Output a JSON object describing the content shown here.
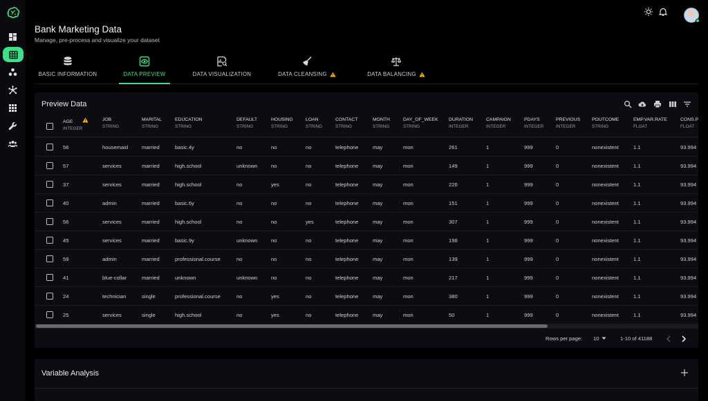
{
  "sidebar": {
    "logo_icon": "brain-logo-icon",
    "items": [
      {
        "icon": "dashboard-icon",
        "active": false
      },
      {
        "icon": "table-grid-icon",
        "active": true
      },
      {
        "icon": "cluster-icon",
        "active": false
      },
      {
        "icon": "network-icon",
        "active": false
      },
      {
        "icon": "apps-grid-icon",
        "active": false
      },
      {
        "icon": "wrench-icon",
        "active": false
      },
      {
        "icon": "users-icon",
        "active": false
      }
    ]
  },
  "topbar": {
    "icons": [
      "brightness-icon",
      "bell-icon",
      "user-avatar"
    ]
  },
  "header": {
    "title": "Bank Marketing Data",
    "subtitle": "Manage, pre-process and visualize your dataset"
  },
  "tabs": [
    {
      "label": "BASIC INFORMATION",
      "icon": "database-icon",
      "active": false,
      "warning": false
    },
    {
      "label": "DATA PREVIEW",
      "icon": "eye-icon",
      "active": true,
      "warning": false
    },
    {
      "label": "DATA VISUALIZATION",
      "icon": "chart-search-icon",
      "active": false,
      "warning": false
    },
    {
      "label": "DATA CLEANSING",
      "icon": "broom-icon",
      "active": false,
      "warning": true
    },
    {
      "label": "DATA BALANCING",
      "icon": "scale-icon",
      "active": false,
      "warning": true
    }
  ],
  "preview": {
    "title": "Preview Data",
    "toolbar_icons": [
      "search-icon",
      "cloud-download-icon",
      "print-icon",
      "columns-icon",
      "filter-icon"
    ],
    "columns": [
      {
        "name": "AGE",
        "type": "INTEGER",
        "warning": true
      },
      {
        "name": "JOB",
        "type": "STRING"
      },
      {
        "name": "MARITAL",
        "type": "STRING"
      },
      {
        "name": "EDUCATION",
        "type": "STRING"
      },
      {
        "name": "DEFAULT",
        "type": "STRING"
      },
      {
        "name": "HOUSING",
        "type": "STRING"
      },
      {
        "name": "LOAN",
        "type": "STRING"
      },
      {
        "name": "CONTACT",
        "type": "STRING"
      },
      {
        "name": "MONTH",
        "type": "STRING"
      },
      {
        "name": "DAY_OF_WEEK",
        "type": "STRING"
      },
      {
        "name": "DURATION",
        "type": "INTEGER"
      },
      {
        "name": "CAMPAIGN",
        "type": "INTEGER"
      },
      {
        "name": "PDAYS",
        "type": "INTEGER"
      },
      {
        "name": "PREVIOUS",
        "type": "INTEGER"
      },
      {
        "name": "POUTCOME",
        "type": "STRING"
      },
      {
        "name": "EMP.VAR.RATE",
        "type": "FLOAT"
      },
      {
        "name": "CONS.P",
        "type": "FLOAT"
      }
    ],
    "rows": [
      [
        "56",
        "housemaid",
        "married",
        "basic.4y",
        "no",
        "no",
        "no",
        "telephone",
        "may",
        "mon",
        "261",
        "1",
        "999",
        "0",
        "nonexistent",
        "1.1",
        "93.994"
      ],
      [
        "57",
        "services",
        "married",
        "high.school",
        "unknown",
        "no",
        "no",
        "telephone",
        "may",
        "mon",
        "149",
        "1",
        "999",
        "0",
        "nonexistent",
        "1.1",
        "93.994"
      ],
      [
        "37",
        "services",
        "married",
        "high.school",
        "no",
        "yes",
        "no",
        "telephone",
        "may",
        "mon",
        "226",
        "1",
        "999",
        "0",
        "nonexistent",
        "1.1",
        "93.994"
      ],
      [
        "40",
        "admin",
        "married",
        "basic.6y",
        "no",
        "no",
        "no",
        "telephone",
        "may",
        "mon",
        "151",
        "1",
        "999",
        "0",
        "nonexistent",
        "1.1",
        "93.994"
      ],
      [
        "56",
        "services",
        "married",
        "high.school",
        "no",
        "no",
        "yes",
        "telephone",
        "may",
        "mon",
        "307",
        "1",
        "999",
        "0",
        "nonexistent",
        "1.1",
        "93.994"
      ],
      [
        "45",
        "services",
        "married",
        "basic.9y",
        "unknown",
        "no",
        "no",
        "telephone",
        "may",
        "mon",
        "198",
        "1",
        "999",
        "0",
        "nonexistent",
        "1.1",
        "93.994"
      ],
      [
        "59",
        "admin",
        "married",
        "professional.course",
        "no",
        "no",
        "no",
        "telephone",
        "may",
        "mon",
        "139",
        "1",
        "999",
        "0",
        "nonexistent",
        "1.1",
        "93.994"
      ],
      [
        "41",
        "blue-collar",
        "married",
        "unknown",
        "unknown",
        "no",
        "no",
        "telephone",
        "may",
        "mon",
        "217",
        "1",
        "999",
        "0",
        "nonexistent",
        "1.1",
        "93.994"
      ],
      [
        "24",
        "technician",
        "single",
        "professional.course",
        "no",
        "yes",
        "no",
        "telephone",
        "may",
        "mon",
        "380",
        "1",
        "999",
        "0",
        "nonexistent",
        "1.1",
        "93.994"
      ],
      [
        "25",
        "services",
        "single",
        "high.school",
        "no",
        "yes",
        "no",
        "telephone",
        "may",
        "mon",
        "50",
        "1",
        "999",
        "0",
        "nonexistent",
        "1.1",
        "93.994"
      ]
    ],
    "pagination": {
      "rows_per_page_label": "Rows per page:",
      "rows_per_page_value": "10",
      "range": "1-10 of 41188"
    }
  },
  "variable_analysis": {
    "title": "Variable Analysis"
  },
  "colors": {
    "accent": "#3ee089",
    "warning": "#f5b800",
    "background": "#000000",
    "card": "#0e0c12"
  }
}
